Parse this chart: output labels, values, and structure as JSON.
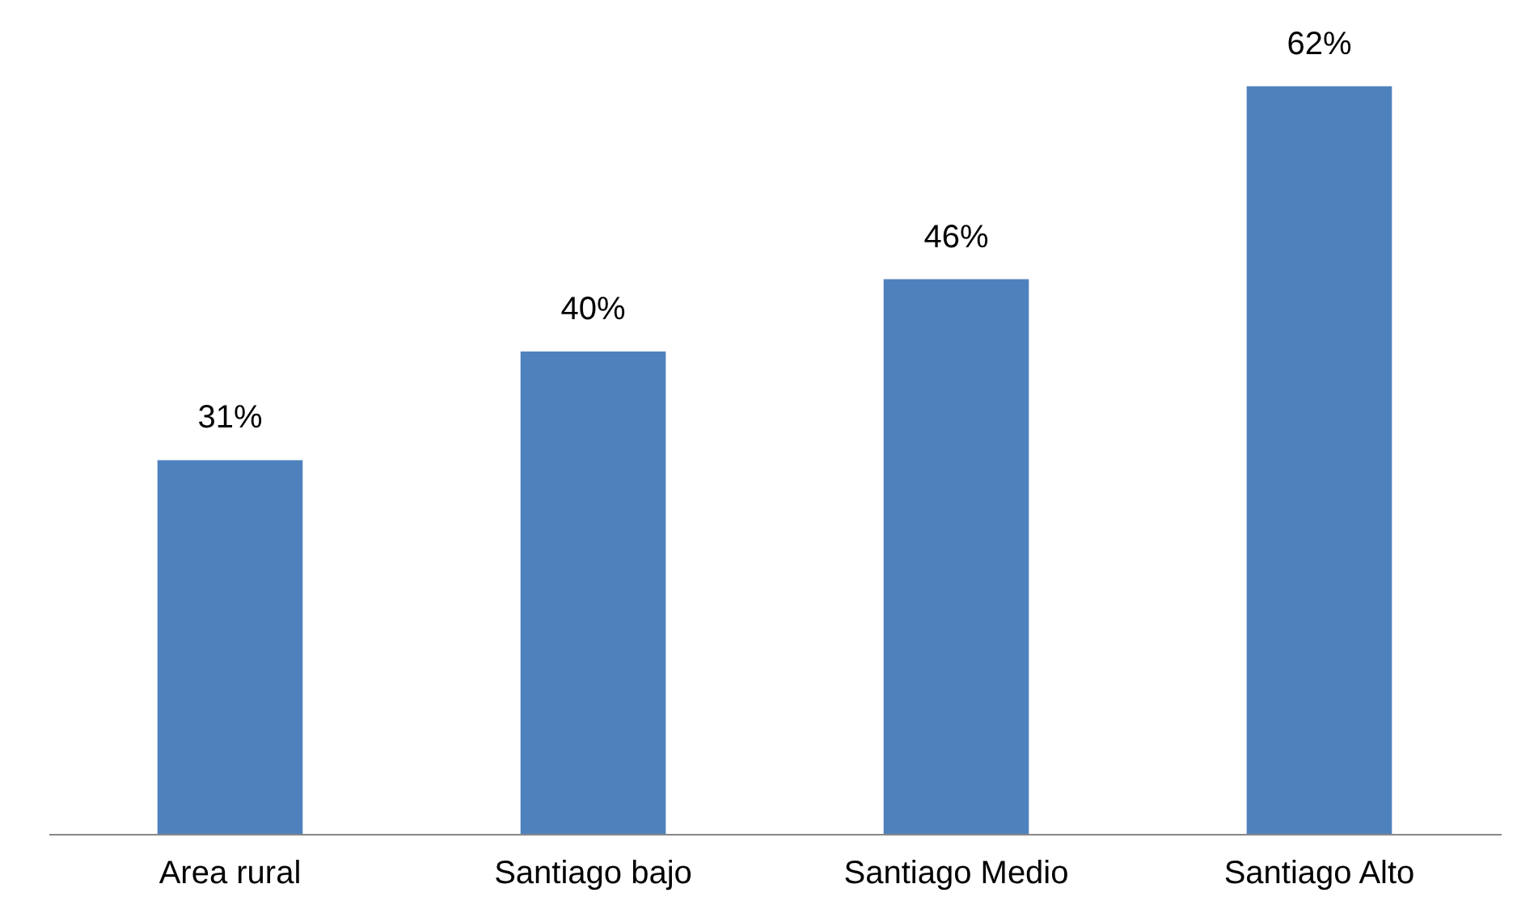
{
  "chart_data": {
    "type": "bar",
    "categories": [
      "Area rural",
      "Santiago bajo",
      "Santiago Medio",
      "Santiago Alto"
    ],
    "values": [
      31,
      40,
      46,
      62
    ],
    "value_labels": [
      "31%",
      "40%",
      "46%",
      "62%"
    ],
    "color": "#4f81bd",
    "tick_labels": "x"
  }
}
